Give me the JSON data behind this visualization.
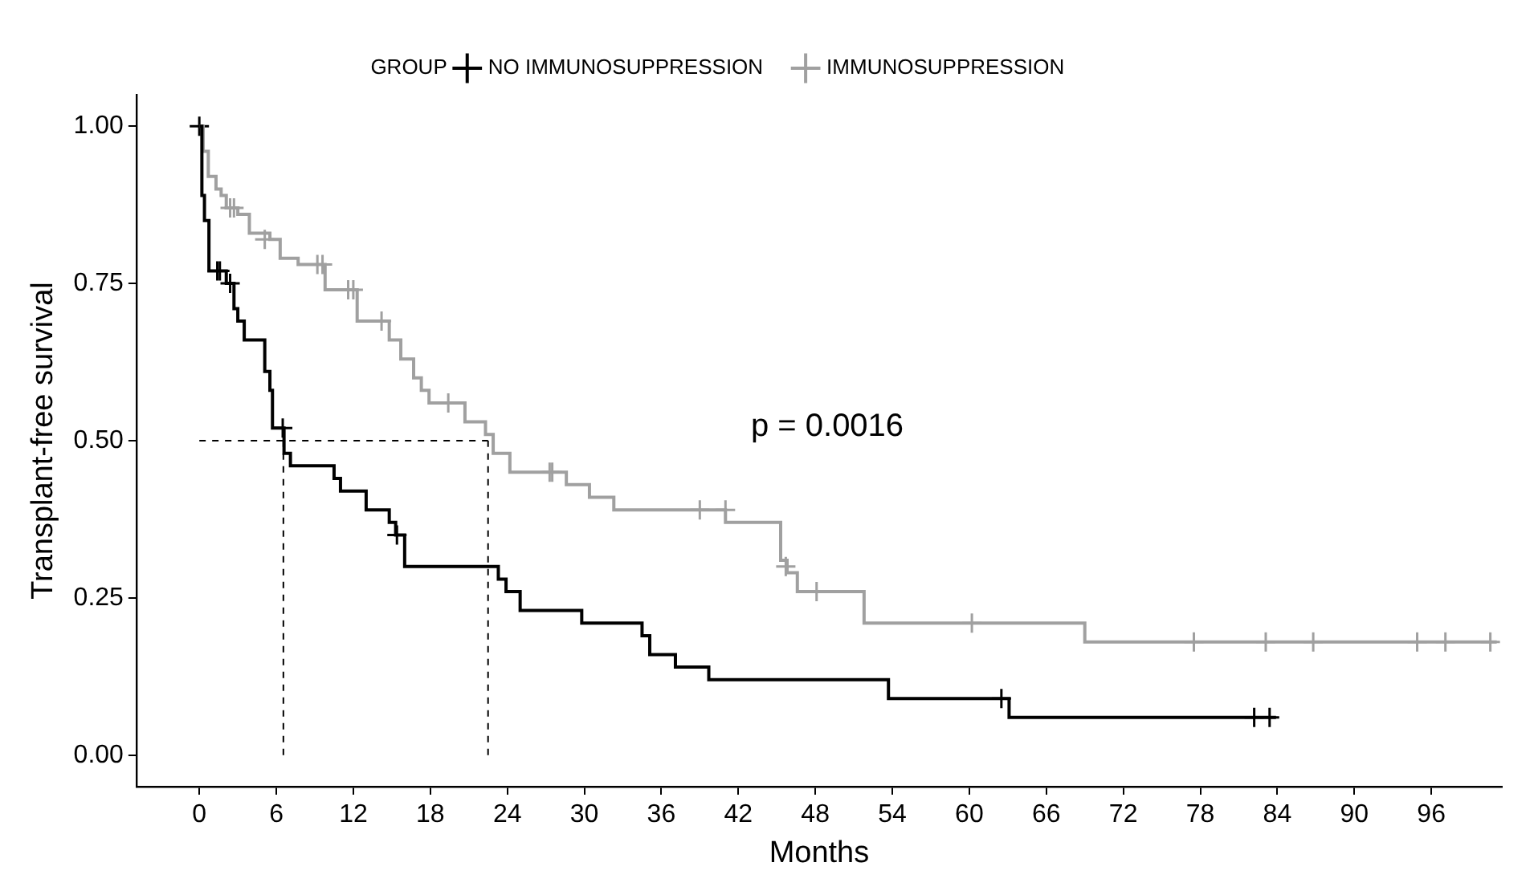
{
  "chart_data": {
    "type": "step",
    "xlabel": "Months",
    "ylabel": "Transplant-free survival",
    "legend_title": "GROUP",
    "legend": "top",
    "annotations": [
      "p = 0.0016"
    ],
    "xlim": [
      -4.9,
      101.5
    ],
    "xticks": [
      0,
      6,
      12,
      18,
      24,
      30,
      36,
      42,
      48,
      54,
      60,
      66,
      72,
      78,
      84,
      90,
      96
    ],
    "ylim": [
      -0.05,
      1.05
    ],
    "yticks": [
      {
        "value": 0,
        "label": "0.00"
      },
      {
        "value": 0.25,
        "label": "0.25"
      },
      {
        "value": 0.5,
        "label": "0.50"
      },
      {
        "value": 0.75,
        "label": "0.75"
      },
      {
        "value": 1,
        "label": "1.00"
      }
    ],
    "grid": false,
    "series": [
      {
        "name": "NO IMMUNOSUPPRESSION",
        "color": "#000000",
        "x": [
          0,
          0.2,
          0.4,
          0.75,
          2.1,
          2.7,
          3.0,
          3.5,
          5.1,
          5.5,
          5.7,
          6.6,
          7.1,
          10.5,
          11.0,
          13.0,
          14.8,
          15.3,
          16.0,
          23.3,
          23.9,
          25.0,
          29.8,
          34.5,
          35.1,
          37.1,
          39.7,
          53.7,
          63.1,
          83.9
        ],
        "values": [
          1.0,
          0.89,
          0.85,
          0.77,
          0.75,
          0.71,
          0.69,
          0.66,
          0.61,
          0.58,
          0.52,
          0.48,
          0.46,
          0.44,
          0.42,
          0.39,
          0.37,
          0.35,
          0.3,
          0.28,
          0.26,
          0.23,
          0.21,
          0.19,
          0.16,
          0.14,
          0.12,
          0.09,
          0.06,
          0.06
        ]
      },
      {
        "name": "IMMUNOSUPPRESSION",
        "color": "#a0a0a0",
        "x": [
          0,
          0.3,
          0.7,
          1.3,
          1.7,
          2.1,
          3.0,
          3.9,
          5.5,
          6.3,
          7.7,
          9.8,
          12.3,
          14.8,
          15.7,
          16.7,
          17.3,
          17.9,
          20.7,
          22.3,
          22.9,
          24.2,
          28.6,
          30.4,
          32.3,
          41.0,
          45.3,
          45.8,
          46.6,
          51.8,
          69.0,
          101.1
        ],
        "values": [
          1.0,
          0.96,
          0.92,
          0.9,
          0.89,
          0.87,
          0.86,
          0.83,
          0.82,
          0.79,
          0.78,
          0.74,
          0.69,
          0.66,
          0.63,
          0.6,
          0.58,
          0.56,
          0.53,
          0.51,
          0.48,
          0.45,
          0.43,
          0.41,
          0.39,
          0.37,
          0.31,
          0.29,
          0.26,
          0.21,
          0.18,
          0.18
        ]
      },
      {
        "type": "scatter",
        "marker": "cross",
        "color": "#000000",
        "x": [
          0,
          1.4,
          1.6,
          2.4,
          6.5,
          15.4,
          62.5,
          82.2,
          83.4
        ],
        "values": [
          1.0,
          0.77,
          0.77,
          0.75,
          0.52,
          0.35,
          0.09,
          0.06,
          0.06
        ]
      },
      {
        "type": "scatter",
        "marker": "cross",
        "color": "#a0a0a0",
        "x": [
          2.4,
          2.7,
          5.1,
          9.2,
          9.6,
          11.6,
          12.0,
          14.2,
          19.4,
          27.3,
          27.5,
          39.0,
          41.0,
          45.7,
          48.1,
          60.2,
          77.5,
          83.1,
          86.8,
          94.9,
          97.1,
          100.6
        ],
        "values": [
          0.87,
          0.87,
          0.82,
          0.78,
          0.78,
          0.74,
          0.74,
          0.69,
          0.56,
          0.45,
          0.45,
          0.39,
          0.39,
          0.3,
          0.26,
          0.21,
          0.18,
          0.18,
          0.18,
          0.18,
          0.18,
          0.18
        ]
      },
      {
        "type": "line",
        "line_style": "dashed",
        "color": "#000000",
        "x": [
          0,
          22.5
        ],
        "values": [
          0.5,
          0.5
        ]
      },
      {
        "type": "line",
        "line_style": "dashed",
        "color": "#000000",
        "x": [
          6.55,
          6.55
        ],
        "values": [
          0,
          0.5
        ]
      },
      {
        "type": "line",
        "line_style": "dashed",
        "color": "#000000",
        "x": [
          22.5,
          22.5
        ],
        "values": [
          0,
          0.5
        ]
      }
    ]
  }
}
